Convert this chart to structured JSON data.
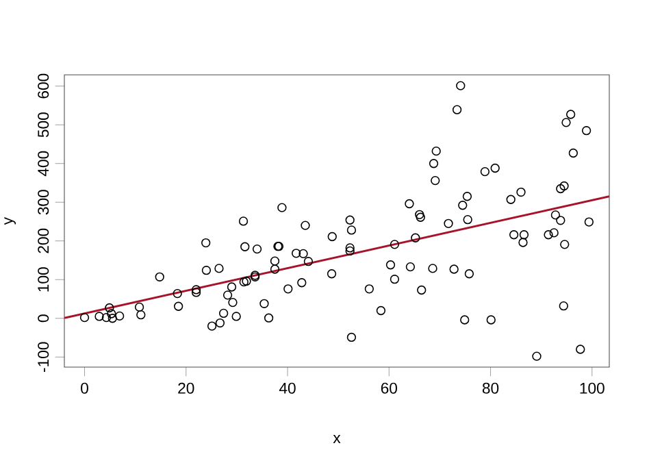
{
  "chart_data": {
    "type": "scatter",
    "xlabel": "x",
    "ylabel": "y",
    "xlim": [
      -3.98,
      103.4
    ],
    "ylim": [
      -126,
      629
    ],
    "xticks": [
      0,
      20,
      40,
      60,
      80,
      100
    ],
    "yticks": [
      -100,
      0,
      100,
      200,
      300,
      400,
      500,
      600
    ],
    "series": [
      {
        "color": "#000000",
        "marker": "circle",
        "x": [
          0,
          2.9,
          4.3,
          4.9,
          5.3,
          5.5,
          6.9,
          10.8,
          11.1,
          14.8,
          18.3,
          18.5,
          22,
          22,
          23.9,
          24,
          25.1,
          26.5,
          26.7,
          27.4,
          28.2,
          29,
          29.2,
          29.9,
          31.3,
          31.6,
          31.4,
          31.9,
          33.6,
          33.6,
          34,
          35.4,
          36.3,
          37.5,
          37.5,
          38.1,
          38.3,
          38.9,
          40.1,
          41.7,
          42.8,
          43.1,
          43.5,
          44.1,
          48.8,
          48.7,
          52.3,
          52.6,
          52.3,
          52.3,
          52.6,
          56.1,
          58.4,
          60.3,
          61.1,
          61.1,
          64,
          64.2,
          65.2,
          66,
          66.2,
          66.4,
          68.6,
          68.8,
          69.3,
          69.1,
          71.7,
          72.8,
          73.4,
          74.1,
          74.5,
          74.9,
          75.4,
          75.5,
          75.8,
          78.9,
          80.1,
          80.9,
          84,
          84.6,
          86,
          86.4,
          86.6,
          89.1,
          91.4,
          92.5,
          92.8,
          93.8,
          93.8,
          94.5,
          94.4,
          94.6,
          94.9,
          95.8,
          96.3,
          97.7,
          98.9,
          99.4
        ],
        "values": [
          2,
          5,
          2,
          27,
          12,
          0,
          6,
          29,
          9,
          107,
          64,
          31,
          74,
          67,
          195,
          124,
          -20,
          129,
          -12,
          13,
          60,
          81,
          41,
          5,
          251,
          185,
          94,
          96,
          111,
          107,
          179,
          38,
          1,
          148,
          127,
          186,
          186,
          286,
          76,
          168,
          92,
          167,
          240,
          147,
          211,
          115,
          254,
          228,
          182,
          174,
          -49,
          76,
          20,
          138,
          191,
          101,
          296,
          133,
          208,
          268,
          261,
          73,
          129,
          400,
          432,
          356,
          245,
          127,
          539,
          601,
          292,
          -4,
          315,
          255,
          115,
          379,
          -4,
          388,
          307,
          216,
          326,
          196,
          216,
          -98,
          216,
          221,
          267,
          253,
          335,
          342,
          32,
          191,
          506,
          527,
          427,
          -80,
          485,
          249
        ]
      },
      {
        "type": "line",
        "color": "#a8132a",
        "line_style": "solid",
        "x": [
          -3.98,
          103.4
        ],
        "values": [
          1,
          315
        ]
      }
    ]
  }
}
